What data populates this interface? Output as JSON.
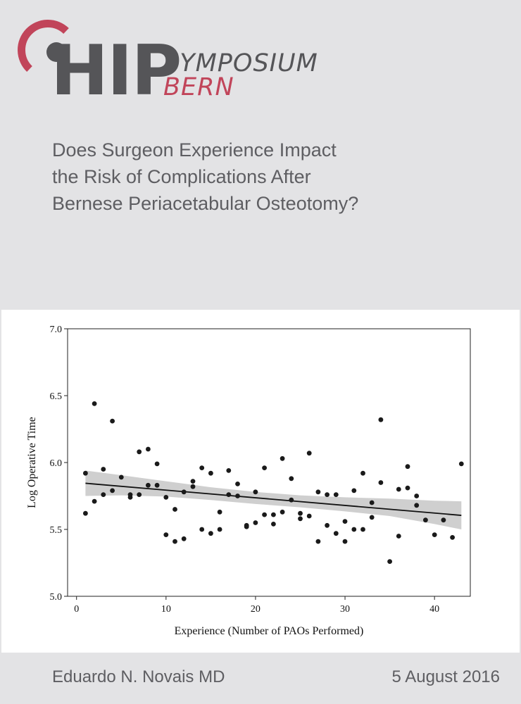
{
  "logo": {
    "main": "HIP",
    "top": "SYMPOSIUM",
    "bottom": "BERN",
    "accent_color": "#c1455a",
    "gray_color": "#555558"
  },
  "title_lines": [
    "Does Surgeon Experience Impact",
    "the Risk of Complications After",
    "Bernese Periacetabular Osteotomy?"
  ],
  "footer": {
    "author": "Eduardo N. Novais MD",
    "date": "5 August 2016"
  },
  "chart_data": {
    "type": "scatter",
    "xlabel": "Experience (Number of PAOs Performed)",
    "ylabel": "Log Operative Time",
    "xlim": [
      -1,
      44
    ],
    "ylim": [
      5.0,
      7.0
    ],
    "xticks": [
      0,
      10,
      20,
      30,
      40
    ],
    "yticks": [
      5.0,
      5.5,
      6.0,
      6.5,
      7.0
    ],
    "points": [
      [
        1,
        5.92
      ],
      [
        1,
        5.62
      ],
      [
        2,
        6.44
      ],
      [
        2,
        5.71
      ],
      [
        3,
        5.95
      ],
      [
        3,
        5.76
      ],
      [
        4,
        6.31
      ],
      [
        4,
        5.79
      ],
      [
        5,
        5.89
      ],
      [
        6,
        5.74
      ],
      [
        6,
        5.76
      ],
      [
        7,
        6.08
      ],
      [
        7,
        5.76
      ],
      [
        8,
        6.1
      ],
      [
        8,
        5.83
      ],
      [
        9,
        5.99
      ],
      [
        9,
        5.83
      ],
      [
        10,
        5.74
      ],
      [
        10,
        5.46
      ],
      [
        11,
        5.65
      ],
      [
        11,
        5.41
      ],
      [
        12,
        5.78
      ],
      [
        12,
        5.43
      ],
      [
        13,
        5.86
      ],
      [
        13,
        5.82
      ],
      [
        14,
        5.96
      ],
      [
        14,
        5.5
      ],
      [
        15,
        5.92
      ],
      [
        15,
        5.47
      ],
      [
        16,
        5.63
      ],
      [
        16,
        5.5
      ],
      [
        17,
        5.94
      ],
      [
        17,
        5.76
      ],
      [
        18,
        5.84
      ],
      [
        18,
        5.75
      ],
      [
        19,
        5.53
      ],
      [
        19,
        5.52
      ],
      [
        20,
        5.78
      ],
      [
        20,
        5.55
      ],
      [
        21,
        5.96
      ],
      [
        21,
        5.61
      ],
      [
        22,
        5.61
      ],
      [
        22,
        5.54
      ],
      [
        23,
        6.03
      ],
      [
        23,
        5.63
      ],
      [
        24,
        5.88
      ],
      [
        24,
        5.72
      ],
      [
        25,
        5.62
      ],
      [
        25,
        5.58
      ],
      [
        26,
        6.07
      ],
      [
        26,
        5.6
      ],
      [
        27,
        5.78
      ],
      [
        27,
        5.41
      ],
      [
        28,
        5.76
      ],
      [
        28,
        5.53
      ],
      [
        29,
        5.76
      ],
      [
        29,
        5.47
      ],
      [
        30,
        5.56
      ],
      [
        30,
        5.41
      ],
      [
        31,
        5.79
      ],
      [
        31,
        5.5
      ],
      [
        32,
        5.92
      ],
      [
        32,
        5.5
      ],
      [
        33,
        5.7
      ],
      [
        33,
        5.59
      ],
      [
        34,
        6.32
      ],
      [
        34,
        5.85
      ],
      [
        35,
        5.26
      ],
      [
        36,
        5.8
      ],
      [
        36,
        5.45
      ],
      [
        37,
        5.97
      ],
      [
        37,
        5.81
      ],
      [
        38,
        5.75
      ],
      [
        38,
        5.68
      ],
      [
        39,
        5.57
      ],
      [
        40,
        5.46
      ],
      [
        41,
        5.57
      ],
      [
        42,
        5.44
      ],
      [
        43,
        5.99
      ]
    ],
    "regression": {
      "x": [
        1,
        43
      ],
      "y": [
        5.845,
        5.605
      ]
    },
    "confidence_band": {
      "x": [
        1,
        5,
        10,
        15,
        20,
        25,
        30,
        35,
        40,
        43
      ],
      "upper": [
        5.94,
        5.905,
        5.86,
        5.815,
        5.78,
        5.755,
        5.74,
        5.73,
        5.715,
        5.71
      ],
      "lower": [
        5.75,
        5.755,
        5.745,
        5.72,
        5.69,
        5.665,
        5.635,
        5.6,
        5.54,
        5.5
      ]
    },
    "point_color": "#1a1a1a",
    "band_color": "#cfcfcf",
    "line_color": "#111111"
  }
}
